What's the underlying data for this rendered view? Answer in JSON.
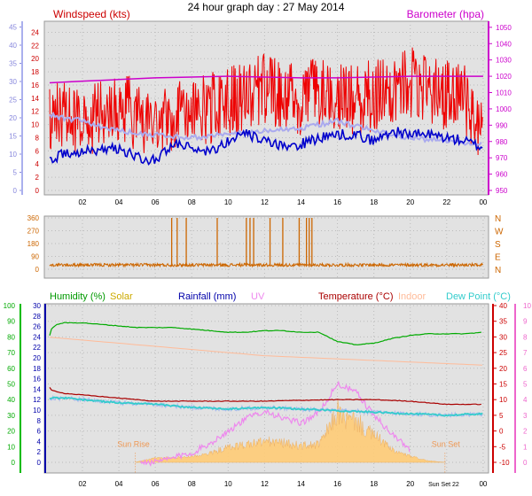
{
  "title": "24 hour graph day : 27 May 2014",
  "colors": {
    "wind": "#ee0000",
    "wind_avg": "#0000cc",
    "wind_gust_avg": "#aaaaee",
    "baro": "#cc00cc",
    "wdir": "#cc6600",
    "humidity": "#00aa00",
    "solar": "#ccaa00",
    "rain": "#0000aa",
    "uv": "#ee88ee",
    "temp": "#aa0000",
    "indoor": "#ffbb99",
    "dew": "#33cccc",
    "plot_bg": "#e2e2e2"
  },
  "chart_data": [
    {
      "type": "line",
      "panel": "wind-baro",
      "labels": {
        "left": "Windspeed (kts)",
        "right": "Barometer (hpa)"
      },
      "x_ticks": [
        "02",
        "04",
        "06",
        "08",
        "10",
        "12",
        "14",
        "16",
        "18",
        "20",
        "22",
        "00"
      ],
      "left_outer_ticks": [
        "0",
        "5",
        "10",
        "15",
        "20",
        "25",
        "30",
        "35",
        "40",
        "45"
      ],
      "left_inner_ticks": [
        "0",
        "2",
        "4",
        "6",
        "8",
        "10",
        "12",
        "14",
        "16",
        "18",
        "20",
        "22",
        "24"
      ],
      "right_ticks": [
        "950",
        "960",
        "970",
        "980",
        "990",
        "1000",
        "1010",
        "1020",
        "1030",
        "1040",
        "1050"
      ],
      "ylim_kts": [
        0,
        25
      ],
      "ylim_hpa": [
        950,
        1051
      ],
      "series": [
        {
          "key": "gust",
          "hours": [
            0,
            1,
            2,
            3,
            4,
            5,
            6,
            7,
            8,
            9,
            10,
            11,
            12,
            13,
            14,
            15,
            16,
            17,
            18,
            19,
            20,
            21,
            22,
            23,
            24
          ],
          "values": [
            10,
            11,
            10,
            11,
            12,
            11,
            10,
            11,
            12,
            12,
            13,
            14,
            15,
            14,
            13,
            15,
            14,
            13,
            14,
            15,
            16,
            15,
            14,
            13,
            9
          ]
        },
        {
          "key": "wind_avg",
          "hours": [
            0,
            1,
            2,
            3,
            4,
            5,
            6,
            7,
            8,
            9,
            10,
            11,
            12,
            13,
            14,
            15,
            16,
            17,
            18,
            19,
            20,
            21,
            22,
            23,
            24
          ],
          "values": [
            4.5,
            5.5,
            6,
            6,
            6.5,
            5,
            4.5,
            7,
            6.5,
            6,
            7.5,
            8.5,
            7.5,
            6.5,
            7,
            8,
            8.5,
            8.5,
            7.5,
            9,
            8.5,
            8.5,
            8,
            7.5,
            6.5
          ]
        },
        {
          "key": "gust_avg",
          "hours": [
            0,
            2,
            4,
            6,
            8,
            10,
            12,
            14,
            16,
            18,
            20,
            22,
            24
          ],
          "values": [
            11.5,
            10.5,
            9,
            8.5,
            8,
            8.5,
            9,
            9.5,
            10.5,
            9,
            8,
            7.5,
            7
          ]
        },
        {
          "key": "baro",
          "hours": [
            0,
            2,
            4,
            6,
            8,
            10,
            12,
            14,
            16,
            18,
            20,
            22,
            24
          ],
          "values": [
            1016,
            1017,
            1018,
            1019,
            1019.5,
            1020,
            1019.5,
            1019,
            1019,
            1019.5,
            1020,
            1020,
            1020
          ]
        }
      ]
    },
    {
      "type": "line",
      "panel": "wind-direction",
      "y_ticks": [
        "0",
        "90",
        "180",
        "270",
        "360"
      ],
      "right_compass": [
        "N",
        "W",
        "S",
        "E",
        "N"
      ],
      "ylim": [
        0,
        360
      ],
      "baseline_deg": 30,
      "north_spikes_hours": [
        6.9,
        7.2,
        7.7,
        9.4,
        11.0,
        11.2,
        11.4,
        12.3,
        13.0,
        13.9,
        14.3,
        14.45,
        14.6
      ]
    },
    {
      "type": "line",
      "panel": "thermo",
      "legend": [
        "Humidity (%)",
        "Solar",
        "Rainfall (mm)",
        "UV",
        "Temperature (°C)",
        "Indoor",
        "Dew Point (°C)"
      ],
      "humidity_ticks": [
        "0",
        "10",
        "20",
        "30",
        "40",
        "50",
        "60",
        "70",
        "80",
        "90",
        "100"
      ],
      "rain_ticks": [
        "0",
        "2",
        "4",
        "6",
        "8",
        "10",
        "12",
        "14",
        "16",
        "18",
        "20",
        "22",
        "24",
        "26",
        "28",
        "30"
      ],
      "temp_ticks": [
        "-10",
        "-5",
        "0",
        "5",
        "10",
        "15",
        "20",
        "25",
        "30",
        "35",
        "40"
      ],
      "uv_ticks": [
        "0",
        "1",
        "2",
        "3",
        "4",
        "5",
        "6",
        "7",
        "8",
        "9",
        "10"
      ],
      "x_ticks": [
        "02",
        "04",
        "06",
        "08",
        "10",
        "12",
        "14",
        "16",
        "18",
        "20",
        "22",
        "00"
      ],
      "sun_rise": "Sun Rise",
      "sun_set": "Sun Set",
      "sun_set_tick": "Sun Set",
      "sun_rise_hour": 4.9,
      "sun_set_hour": 21.9,
      "series": [
        {
          "key": "humidity",
          "hours": [
            0,
            0.3,
            0.6,
            1,
            2,
            3,
            4,
            5,
            6,
            7,
            8,
            9,
            10,
            11,
            12,
            13,
            14,
            15,
            16,
            17,
            18,
            19,
            20,
            21,
            22,
            23,
            24
          ],
          "values": [
            73,
            85,
            88,
            89,
            89,
            88,
            87,
            86,
            86,
            86,
            85,
            84,
            83,
            83,
            84,
            84,
            83,
            83,
            77,
            75,
            76,
            79,
            81,
            82,
            82,
            82,
            83
          ]
        },
        {
          "key": "temperature",
          "hours": [
            0,
            0.3,
            1,
            2,
            3,
            4,
            5,
            6,
            8,
            10,
            12,
            14,
            16,
            18,
            20,
            22,
            24
          ],
          "values": [
            15.5,
            13,
            12,
            11.5,
            11,
            10.5,
            10,
            9.5,
            9.5,
            9.5,
            9.5,
            9.8,
            10,
            10,
            9.5,
            8.5,
            8.5
          ]
        },
        {
          "key": "dew_point",
          "hours": [
            0,
            1,
            2,
            3,
            4,
            6,
            8,
            10,
            12,
            14,
            16,
            18,
            20,
            22,
            24
          ],
          "values": [
            10.5,
            10.5,
            10,
            9.5,
            9,
            8.5,
            7.5,
            7,
            7.5,
            7,
            6.5,
            6,
            5.5,
            5,
            5.5
          ]
        },
        {
          "key": "indoor",
          "hours": [
            0,
            4,
            8,
            12,
            16,
            20,
            24
          ],
          "values": [
            30,
            28,
            26,
            24,
            23,
            22,
            21
          ]
        },
        {
          "key": "solar",
          "hours": [
            4.9,
            6,
            7,
            8,
            9,
            10,
            11,
            12,
            13,
            14,
            15,
            15.6,
            16,
            16.5,
            17,
            17.5,
            18,
            18.5,
            19,
            20,
            21,
            21.9
          ],
          "values": [
            0,
            1.5,
            1.5,
            2,
            3,
            5,
            6,
            7,
            6.5,
            5.5,
            6,
            12,
            17,
            14,
            14,
            11,
            9,
            7,
            4,
            2,
            0.5,
            0
          ]
        },
        {
          "key": "uv",
          "hours": [
            5,
            6,
            7,
            8,
            9,
            10,
            11,
            12,
            13,
            14,
            15,
            16,
            17,
            18,
            19,
            20
          ],
          "values": [
            0,
            0,
            0.3,
            0.6,
            1.2,
            2,
            2.8,
            3.3,
            2.8,
            2.5,
            3.2,
            5,
            4.5,
            3,
            1.8,
            0.8
          ]
        }
      ]
    }
  ]
}
